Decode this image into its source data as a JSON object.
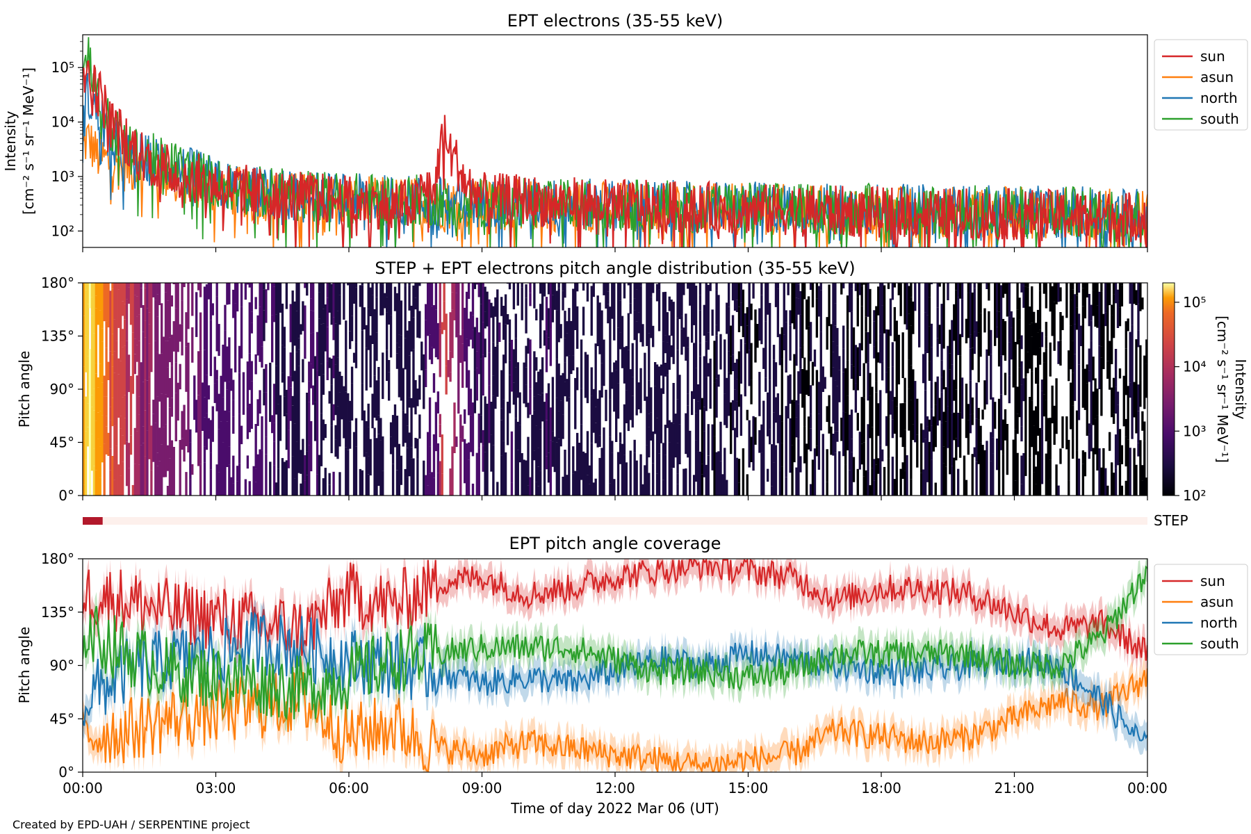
{
  "chart_data": [
    {
      "type": "line",
      "title": "EPT electrons (35-55 keV)",
      "ylabel_line1": "Intensity",
      "ylabel_line2": "[cm⁻² s⁻¹ sr⁻¹ MeV⁻¹]",
      "yscale": "log",
      "ylim": [
        50,
        400000
      ],
      "y_ticks": [
        {
          "value": 100,
          "label": "10²"
        },
        {
          "value": 1000,
          "label": "10³"
        },
        {
          "value": 10000,
          "label": "10⁴"
        },
        {
          "value": 100000,
          "label": "10⁵"
        }
      ],
      "xlim": [
        "00:00",
        "24:00"
      ],
      "legend": "outside-right-top",
      "series": [
        {
          "name": "sun",
          "color": "#d62728",
          "x_hours": [
            0,
            0.1,
            0.3,
            0.6,
            1.0,
            1.5,
            2.0,
            3.0,
            4.0,
            6.0,
            7.5,
            8.0,
            8.1,
            8.3,
            8.6,
            9.0,
            12.0,
            15.0,
            18.0,
            21.0,
            24.0
          ],
          "values": [
            30000,
            100000,
            40000,
            10000,
            4000,
            2000,
            1200,
            700,
            500,
            350,
            300,
            900,
            6000,
            2500,
            800,
            400,
            300,
            250,
            220,
            200,
            180
          ]
        },
        {
          "name": "asun",
          "color": "#ff7f0e",
          "x_hours": [
            0,
            0.1,
            0.3,
            0.6,
            1.0,
            1.5,
            2.0,
            3.0,
            4.0,
            6.0,
            8.0,
            9.0,
            12.0,
            15.0,
            18.0,
            21.0,
            24.0
          ],
          "values": [
            3000,
            5000,
            2500,
            1800,
            1500,
            1300,
            1000,
            600,
            450,
            350,
            320,
            300,
            280,
            250,
            230,
            220,
            200
          ]
        },
        {
          "name": "north",
          "color": "#1f77b4",
          "x_hours": [
            0,
            0.1,
            0.3,
            0.6,
            1.0,
            1.5,
            2.0,
            3.0,
            4.0,
            6.0,
            8.0,
            9.0,
            12.0,
            15.0,
            18.0,
            21.0,
            24.0
          ],
          "values": [
            5000,
            30000,
            15000,
            5000,
            2500,
            2000,
            1500,
            700,
            500,
            380,
            350,
            330,
            300,
            270,
            250,
            230,
            210
          ]
        },
        {
          "name": "south",
          "color": "#2ca02c",
          "x_hours": [
            0,
            0.1,
            0.3,
            0.6,
            1.0,
            1.5,
            2.0,
            3.0,
            4.0,
            6.0,
            8.0,
            9.0,
            12.0,
            15.0,
            18.0,
            21.0,
            24.0
          ],
          "values": [
            60000,
            200000,
            30000,
            8000,
            3000,
            2200,
            1600,
            750,
            520,
            400,
            360,
            330,
            300,
            270,
            250,
            230,
            210
          ]
        }
      ]
    },
    {
      "type": "heatmap",
      "title": "STEP + EPT electrons pitch angle distribution (35-55 keV)",
      "ylabel": "Pitch angle",
      "ylim": [
        0,
        180
      ],
      "y_ticks": [
        "0°",
        "45°",
        "90°",
        "135°",
        "180°"
      ],
      "xlim": [
        "00:00",
        "24:00"
      ],
      "colormap": "inferno",
      "colorbar_label": "Intensity\n[cm⁻² s⁻¹ sr⁻¹ MeV⁻¹]",
      "colorbar_ticks": [
        "10²",
        "10³",
        "10⁴",
        "10⁵"
      ],
      "colorbar_range": [
        100,
        200000
      ]
    },
    {
      "type": "bar",
      "label": "STEP",
      "note_color_active": "#b2182b",
      "note_color_inactive": "#fdf0ec",
      "active_x_hours": [
        0.0,
        0.45
      ]
    },
    {
      "type": "line",
      "title": "EPT pitch angle coverage",
      "ylabel": "Pitch angle",
      "ylim": [
        0,
        180
      ],
      "y_ticks": [
        "0°",
        "45°",
        "90°",
        "135°",
        "180°"
      ],
      "x_ticks": [
        "00:00",
        "03:00",
        "06:00",
        "09:00",
        "12:00",
        "15:00",
        "18:00",
        "21:00",
        "00:00"
      ],
      "xlabel": "Time of day 2022 Mar 06 (UT)",
      "legend": "outside-right-top",
      "series": [
        {
          "name": "sun",
          "color": "#d62728",
          "x_hours": [
            0,
            1,
            2,
            3,
            4,
            5,
            6,
            7,
            8,
            9,
            10,
            11,
            12,
            13,
            14,
            15,
            16,
            17,
            18,
            19,
            20,
            21,
            22,
            23,
            24
          ],
          "values": [
            150,
            145,
            135,
            130,
            125,
            120,
            150,
            140,
            160,
            165,
            150,
            155,
            165,
            170,
            175,
            170,
            165,
            145,
            155,
            155,
            150,
            135,
            120,
            125,
            100
          ]
        },
        {
          "name": "asun",
          "color": "#ff7f0e",
          "x_hours": [
            0,
            1,
            2,
            3,
            4,
            5,
            6,
            7,
            8,
            9,
            10,
            11,
            12,
            13,
            14,
            15,
            16,
            17,
            18,
            19,
            20,
            21,
            22,
            23,
            24
          ],
          "values": [
            30,
            35,
            45,
            50,
            55,
            60,
            30,
            40,
            20,
            15,
            25,
            20,
            15,
            10,
            5,
            10,
            15,
            35,
            30,
            25,
            30,
            45,
            60,
            55,
            80
          ]
        },
        {
          "name": "north",
          "color": "#1f77b4",
          "x_hours": [
            0,
            1,
            2,
            3,
            4,
            5,
            6,
            7,
            8,
            9,
            10,
            11,
            12,
            13,
            14,
            15,
            16,
            17,
            18,
            19,
            20,
            21,
            22,
            23,
            24
          ],
          "values": [
            60,
            85,
            95,
            100,
            110,
            105,
            95,
            90,
            85,
            75,
            80,
            75,
            85,
            95,
            90,
            100,
            95,
            90,
            85,
            85,
            90,
            95,
            90,
            60,
            20
          ]
        },
        {
          "name": "south",
          "color": "#2ca02c",
          "x_hours": [
            0,
            1,
            2,
            3,
            4,
            5,
            6,
            7,
            8,
            9,
            10,
            11,
            12,
            13,
            14,
            15,
            16,
            17,
            18,
            19,
            20,
            21,
            22,
            23,
            24
          ],
          "values": [
            120,
            100,
            85,
            80,
            75,
            70,
            80,
            95,
            100,
            105,
            105,
            105,
            95,
            85,
            85,
            80,
            85,
            100,
            100,
            100,
            100,
            90,
            90,
            115,
            170
          ]
        }
      ]
    }
  ],
  "footer": {
    "credit": "Created by EPD-UAH / SERPENTINE project"
  }
}
